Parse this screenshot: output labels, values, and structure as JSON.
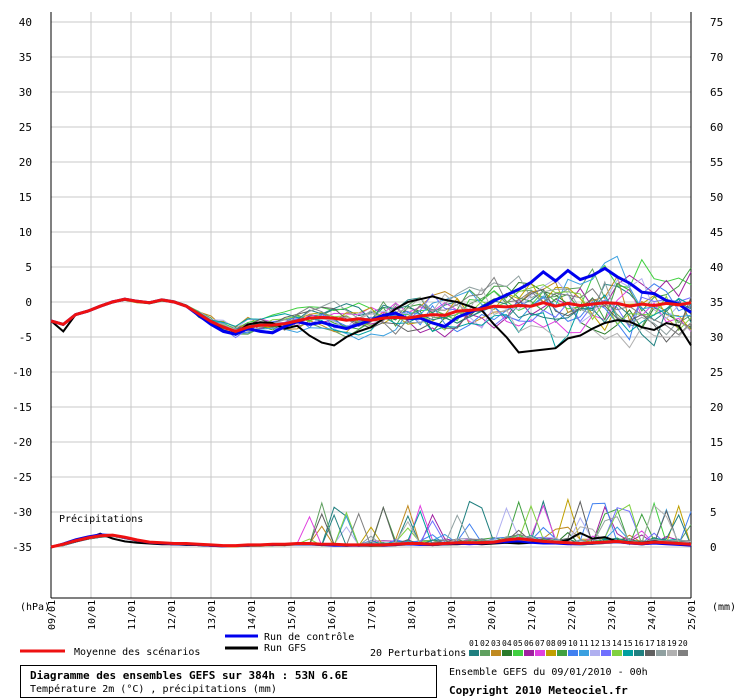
{
  "chart_data": {
    "type": "line",
    "title": "Diagramme des ensembles GEFS sur 384h : 53N 6.6E",
    "subtitle": "Température 2m (°C) , précipitations (mm)",
    "run_info": "Ensemble GEFS du 09/01/2010 - 00h",
    "copyright": "Copyright 2010 Meteociel.fr",
    "left_unit": "(hPa)",
    "right_unit": "(mm)",
    "precip_label": "Précipitations",
    "x_ticks": [
      "09/01",
      "10/01",
      "11/01",
      "12/01",
      "13/01",
      "14/01",
      "15/01",
      "16/01",
      "17/01",
      "18/01",
      "19/01",
      "20/01",
      "21/01",
      "22/01",
      "23/01",
      "24/01",
      "25/01"
    ],
    "xlim": [
      0,
      384
    ],
    "ylim": [
      -40,
      40
    ],
    "left_ticks": [
      "40",
      "35",
      "30",
      "25",
      "20",
      "15",
      "10",
      "5",
      "0",
      "-5",
      "-10",
      "-15",
      "-20",
      "-25",
      "-30",
      "-35"
    ],
    "right_ticks": [
      "75",
      "70",
      "65",
      "60",
      "55",
      "50",
      "45",
      "40",
      "35",
      "30",
      "25",
      "20",
      "15",
      "10",
      "5",
      "0"
    ],
    "grid": true,
    "legend": {
      "mean": "Moyenne des scénarios",
      "control": "Run de contrôle",
      "gfs": "Run GFS",
      "perturbations": "20 Perturbations",
      "perturbation_ids": [
        "01",
        "02",
        "03",
        "04",
        "05",
        "06",
        "07",
        "08",
        "09",
        "10",
        "11",
        "12",
        "13",
        "14",
        "15",
        "16",
        "17",
        "18",
        "19",
        "20"
      ]
    },
    "perturbation_colors": [
      "#1f7f7f",
      "#5fa05f",
      "#c08a20",
      "#2a7a2a",
      "#40d040",
      "#a020a0",
      "#e040e0",
      "#c0a000",
      "#40a040",
      "#4080f0",
      "#3aa0e0",
      "#b0b0f0",
      "#7070ff",
      "#80d040",
      "#00a0a0",
      "#208080",
      "#606060",
      "#90a0a0",
      "#b0b0b0",
      "#7f7f7f"
    ],
    "series_temperature": {
      "mean": [
        -2.7,
        -3.2,
        -1.8,
        -1.3,
        -0.6,
        0.0,
        0.4,
        0.1,
        -0.1,
        0.3,
        0.0,
        -0.6,
        -1.7,
        -2.8,
        -3.6,
        -4.2,
        -3.6,
        -3.3,
        -3.3,
        -3.1,
        -2.7,
        -2.3,
        -2.2,
        -2.3,
        -2.6,
        -2.4,
        -2.6,
        -2.3,
        -2.2,
        -2.3,
        -2.0,
        -1.8,
        -1.9,
        -1.3,
        -1.2,
        -1.0,
        -0.6,
        -0.7,
        -0.5,
        -0.6,
        -0.1,
        -0.6,
        -0.2,
        -0.5,
        -0.3,
        -0.1,
        -0.2,
        -0.6,
        -0.3,
        -0.5,
        -0.2,
        -0.4,
        -0.1
      ],
      "control": [
        -2.7,
        -3.2,
        -1.8,
        -1.3,
        -0.6,
        0.0,
        0.4,
        0.1,
        -0.1,
        0.3,
        0.0,
        -0.6,
        -1.9,
        -3.2,
        -4.2,
        -4.6,
        -3.8,
        -4.2,
        -4.4,
        -3.5,
        -2.8,
        -3.2,
        -2.9,
        -3.4,
        -3.8,
        -3.2,
        -2.6,
        -1.9,
        -1.6,
        -2.4,
        -2.3,
        -3.0,
        -3.5,
        -2.2,
        -1.5,
        -0.8,
        0.2,
        1.0,
        1.8,
        2.8,
        4.3,
        3.0,
        4.5,
        3.2,
        3.8,
        4.8,
        3.6,
        2.7,
        1.4,
        1.2,
        0.2,
        -0.3,
        -1.5
      ],
      "gfs": [
        -2.7,
        -4.2,
        -1.8,
        -1.3,
        -0.6,
        0.0,
        0.4,
        0.1,
        -0.1,
        0.3,
        0.0,
        -0.6,
        -1.8,
        -3.0,
        -4.1,
        -4.5,
        -3.2,
        -2.9,
        -3.0,
        -3.8,
        -3.4,
        -4.8,
        -5.8,
        -6.2,
        -5.0,
        -4.2,
        -3.6,
        -2.4,
        -1.0,
        0.0,
        0.4,
        0.8,
        0.3,
        0.0,
        -0.6,
        -1.2,
        -3.2,
        -5.0,
        -7.2,
        -7.0,
        -6.8,
        -6.6,
        -5.2,
        -4.8,
        -3.8,
        -3.0,
        -2.6,
        -2.8,
        -3.6,
        -4.0,
        -3.0,
        -3.4,
        -6.2
      ]
    },
    "series_precipitation": {
      "mean": [
        0.0,
        0.4,
        0.9,
        1.3,
        1.6,
        1.7,
        1.4,
        1.0,
        0.7,
        0.6,
        0.5,
        0.5,
        0.4,
        0.3,
        0.2,
        0.2,
        0.3,
        0.3,
        0.4,
        0.4,
        0.5,
        0.5,
        0.4,
        0.4,
        0.3,
        0.3,
        0.3,
        0.3,
        0.4,
        0.5,
        0.5,
        0.4,
        0.5,
        0.6,
        0.6,
        0.6,
        0.7,
        1.0,
        1.2,
        1.0,
        0.8,
        0.7,
        0.6,
        0.5,
        0.6,
        0.7,
        0.8,
        0.6,
        0.5,
        0.7,
        0.6,
        0.5,
        0.4
      ],
      "control": [
        0.0,
        0.5,
        1.1,
        1.5,
        1.8,
        1.7,
        1.3,
        0.9,
        0.6,
        0.5,
        0.4,
        0.4,
        0.3,
        0.2,
        0.1,
        0.2,
        0.2,
        0.3,
        0.3,
        0.4,
        0.4,
        0.4,
        0.3,
        0.2,
        0.2,
        0.2,
        0.3,
        0.2,
        0.3,
        0.4,
        0.3,
        0.3,
        0.4,
        0.5,
        0.4,
        0.5,
        0.6,
        0.7,
        0.8,
        0.6,
        0.5,
        0.5,
        0.4,
        0.4,
        0.5,
        0.6,
        0.7,
        0.5,
        0.4,
        0.5,
        0.4,
        0.3,
        0.2
      ],
      "gfs": [
        0.0,
        0.4,
        0.8,
        1.2,
        1.9,
        1.2,
        0.8,
        0.6,
        0.5,
        0.4,
        0.4,
        0.3,
        0.3,
        0.2,
        0.2,
        0.2,
        0.2,
        0.3,
        0.3,
        0.3,
        0.4,
        0.4,
        0.3,
        0.3,
        0.2,
        0.3,
        0.2,
        0.3,
        0.3,
        0.4,
        0.4,
        0.3,
        0.4,
        0.4,
        0.5,
        0.4,
        0.5,
        0.6,
        0.5,
        0.6,
        0.8,
        0.6,
        1.0,
        2.0,
        1.2,
        1.4,
        0.8,
        0.7,
        0.6,
        0.8,
        0.6,
        0.5,
        0.4
      ]
    }
  }
}
